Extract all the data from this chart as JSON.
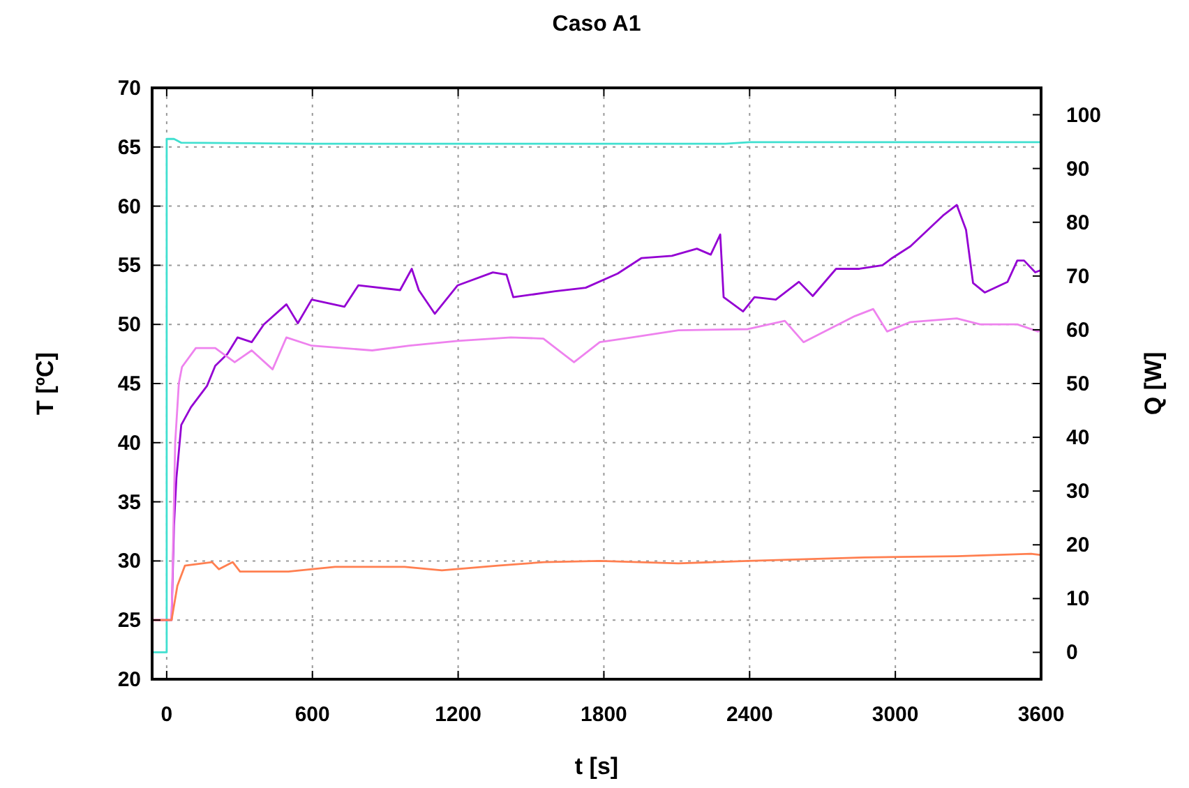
{
  "chart_data": {
    "type": "line",
    "title": "Caso A1",
    "xlabel": "t [s]",
    "ylabel": "T [ºC]",
    "y2label": "Q [W]",
    "xlim": [
      -60,
      3600
    ],
    "xticks": [
      0,
      600,
      1200,
      1800,
      2400,
      3000,
      3600
    ],
    "ylim": [
      20,
      70
    ],
    "yticks": [
      20,
      25,
      30,
      35,
      40,
      45,
      50,
      55,
      60,
      65,
      70
    ],
    "y2lim": [
      -5,
      105
    ],
    "y2ticks": [
      0,
      10,
      20,
      30,
      40,
      50,
      60,
      70,
      80,
      90,
      100
    ],
    "grid": true,
    "line_style": "solid",
    "marker": "none",
    "series": [
      {
        "color": "#40e0d0",
        "axis": "y2",
        "x": [
          -60,
          0,
          0,
          30,
          60,
          600,
          1200,
          1800,
          2300,
          2400,
          3000,
          3600
        ],
        "values": [
          0,
          0,
          95.5,
          95.5,
          94.8,
          94.6,
          94.6,
          94.6,
          94.6,
          94.9,
          94.9,
          94.9
        ]
      },
      {
        "color": "#9400d3",
        "x": [
          -60,
          20,
          30,
          40,
          60,
          100,
          166,
          200,
          250,
          292,
          350,
          400,
          493,
          540,
          597,
          732,
          789,
          961,
          1009,
          1038,
          1104,
          1198,
          1343,
          1399,
          1427,
          1600,
          1725,
          1857,
          1954,
          2080,
          2183,
          2240,
          2279,
          2293,
          2373,
          2420,
          2508,
          2603,
          2660,
          2756,
          2852,
          2947,
          2986,
          3062,
          3196,
          3253,
          3291,
          3320,
          3368,
          3462,
          3502,
          3530,
          3576,
          3600
        ],
        "values": [
          25,
          25,
          33,
          37,
          41.5,
          43,
          44.8,
          46.5,
          47.5,
          48.9,
          48.5,
          50,
          51.7,
          50.1,
          52.1,
          51.5,
          53.3,
          52.9,
          54.7,
          52.9,
          50.9,
          53.3,
          54.4,
          54.2,
          52.3,
          52.8,
          53.1,
          54.3,
          55.6,
          55.8,
          56.4,
          55.9,
          57.6,
          52.3,
          51.1,
          52.3,
          52.1,
          53.6,
          52.4,
          54.7,
          54.7,
          55,
          55.6,
          56.6,
          59.2,
          60.1,
          58,
          53.5,
          52.7,
          53.6,
          55.4,
          55.4,
          54.4,
          54.6
        ]
      },
      {
        "color": "#ee82ee",
        "x": [
          -60,
          20,
          25,
          35,
          50,
          63,
          120,
          200,
          280,
          350,
          436,
          493,
          597,
          846,
          1000,
          1198,
          1417,
          1551,
          1677,
          1783,
          1915,
          2107,
          2393,
          2545,
          2622,
          2833,
          2909,
          2966,
          3062,
          3253,
          3349,
          3502,
          3588,
          3600
        ],
        "values": [
          25,
          25,
          30,
          40,
          45,
          46.4,
          48,
          48,
          46.8,
          47.8,
          46.2,
          48.9,
          48.2,
          47.8,
          48.2,
          48.6,
          48.9,
          48.8,
          46.8,
          48.5,
          48.9,
          49.5,
          49.6,
          50.3,
          48.5,
          50.7,
          51.3,
          49.4,
          50.2,
          50.5,
          50,
          50,
          49.4,
          49.6
        ]
      },
      {
        "color": "#ff7f50",
        "x": [
          -60,
          20,
          44,
          75,
          187,
          215,
          272,
          302,
          501,
          693,
          980,
          1133,
          1363,
          1553,
          1783,
          2107,
          2393,
          2872,
          3253,
          3559,
          3600
        ],
        "values": [
          25,
          25,
          27.9,
          29.6,
          29.9,
          29.3,
          29.9,
          29.1,
          29.1,
          29.5,
          29.5,
          29.2,
          29.6,
          29.9,
          30,
          29.8,
          30,
          30.3,
          30.4,
          30.6,
          30.5
        ]
      }
    ]
  }
}
